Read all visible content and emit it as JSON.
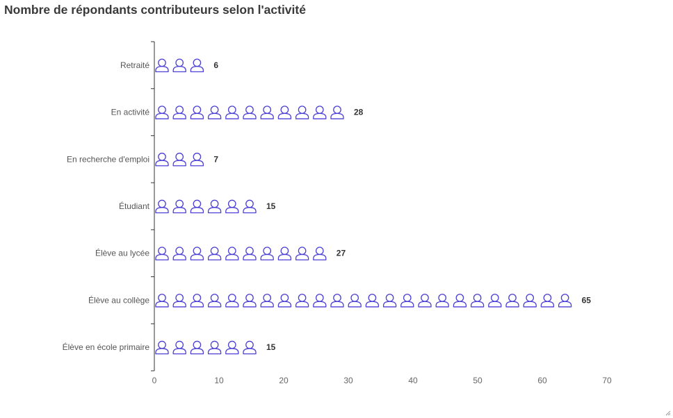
{
  "title": "Nombre de répondants contributeurs selon l'activité",
  "chart_data": {
    "type": "bar",
    "title": "Nombre de répondants contributeurs selon l'activité",
    "orientation": "horizontal",
    "style": "pictogram",
    "icon": "person-outline-icon",
    "icon_color": "#4b3fd6",
    "categories": [
      "Retraité",
      "En activité",
      "En recherche d'emploi",
      "Étudiant",
      "Élève au lycée",
      "Élève au collège",
      "Élève en école primaire"
    ],
    "values": [
      6,
      28,
      7,
      15,
      27,
      65,
      15
    ],
    "xlim": [
      0,
      70
    ],
    "xticks": [
      0,
      10,
      20,
      30,
      40,
      50,
      60,
      70
    ],
    "xlabel": "",
    "ylabel": "",
    "grid": false
  }
}
